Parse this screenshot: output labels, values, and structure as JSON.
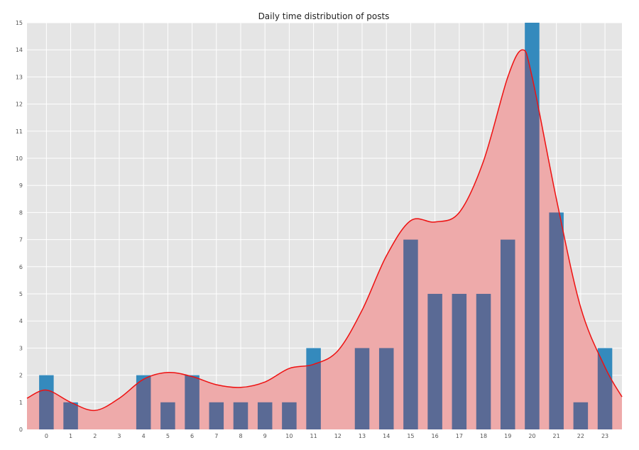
{
  "chart_data": {
    "type": "bar",
    "title": "Daily time distribution of posts",
    "xlabel": "",
    "ylabel": "",
    "categories": [
      "0",
      "1",
      "2",
      "3",
      "4",
      "5",
      "6",
      "7",
      "8",
      "9",
      "10",
      "11",
      "12",
      "13",
      "14",
      "15",
      "16",
      "17",
      "18",
      "19",
      "20",
      "21",
      "22",
      "23"
    ],
    "series": [
      {
        "values": [
          2,
          1,
          0,
          0,
          2,
          1,
          2,
          1,
          1,
          1,
          1,
          3,
          0,
          3,
          3,
          7,
          5,
          5,
          5,
          7,
          15,
          8,
          1,
          3
        ]
      }
    ],
    "density_curve": {
      "x": [
        -0.8,
        0,
        1,
        2,
        3,
        4,
        5,
        6,
        7,
        8,
        9,
        10,
        11,
        12,
        13,
        14,
        15,
        16,
        17,
        18,
        19,
        19.6,
        20,
        21,
        22,
        23,
        23.7
      ],
      "y": [
        1.15,
        1.45,
        1.0,
        0.7,
        1.15,
        1.85,
        2.1,
        1.95,
        1.65,
        1.55,
        1.75,
        2.25,
        2.4,
        2.9,
        4.4,
        6.4,
        7.7,
        7.65,
        8.0,
        9.9,
        13.0,
        14.0,
        13.0,
        8.5,
        4.5,
        2.3,
        1.2
      ]
    },
    "xlim": [
      -0.8,
      23.7
    ],
    "ylim": [
      0,
      15
    ],
    "yticks": [
      0,
      1,
      2,
      3,
      4,
      5,
      6,
      7,
      8,
      9,
      10,
      11,
      12,
      13,
      14,
      15
    ],
    "grid": true,
    "legend": "none",
    "colors": {
      "plot_background": "#e5e5e5",
      "grid": "#ffffff",
      "bar": "#348abd",
      "bar_overlap": "#5a6a95",
      "curve": "#ee1111",
      "curve_fill": "#eeaaaa"
    }
  }
}
